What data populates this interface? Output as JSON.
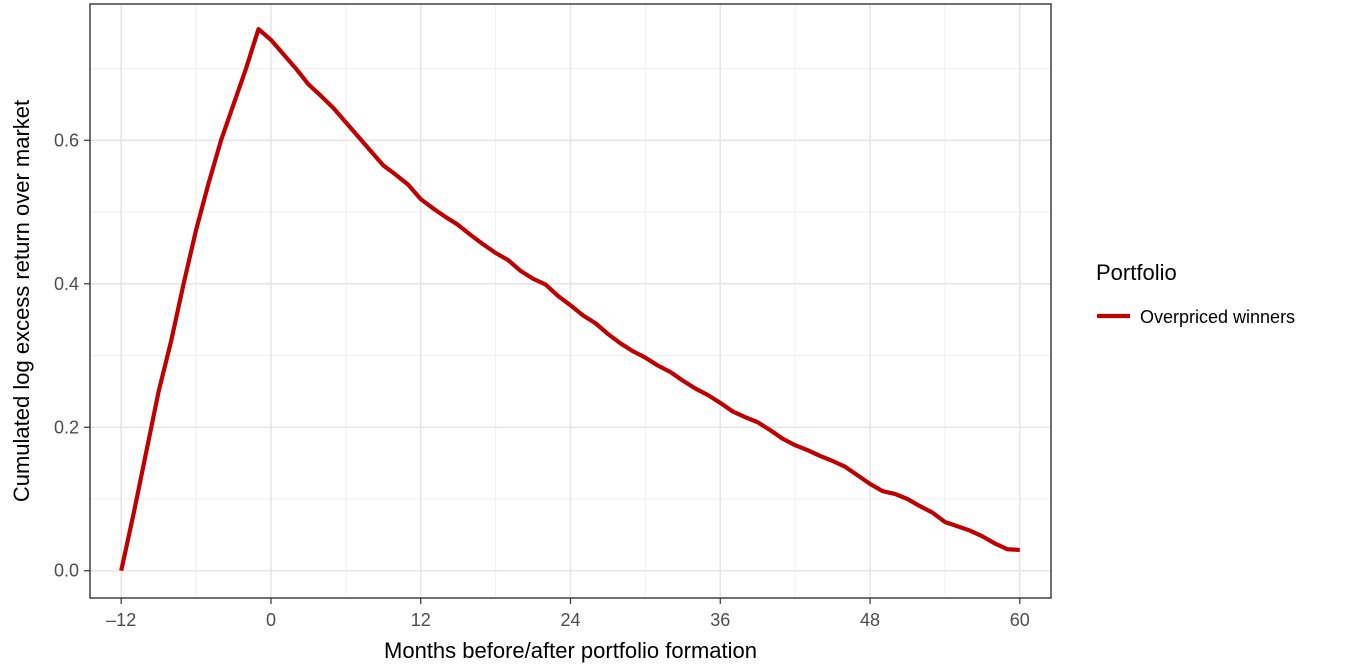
{
  "chart_data": {
    "type": "line",
    "xlabel": "Months before/after portfolio formation",
    "ylabel": "Cumulated log excess return over market",
    "xlim": [
      -14.5,
      62.5
    ],
    "ylim": [
      -0.038,
      0.79
    ],
    "x_ticks": [
      -12,
      0,
      12,
      24,
      36,
      48,
      60
    ],
    "x_tick_labels": [
      "–12",
      "0",
      "12",
      "24",
      "36",
      "48",
      "60"
    ],
    "y_ticks": [
      0.0,
      0.2,
      0.4,
      0.6
    ],
    "y_tick_labels": [
      "0.0",
      "0.2",
      "0.4",
      "0.6"
    ],
    "grid": true,
    "legend_position": "right",
    "legend_title": "Portfolio",
    "series": [
      {
        "name": "Overpriced winners",
        "color": "#C00000",
        "x": [
          -12,
          -11,
          -10,
          -9,
          -8,
          -7,
          -6,
          -5,
          -4,
          -3,
          -2,
          -1,
          0,
          1,
          2,
          3,
          4,
          5,
          6,
          7,
          8,
          9,
          10,
          11,
          12,
          13,
          14,
          15,
          16,
          17,
          18,
          19,
          20,
          21,
          22,
          23,
          24,
          25,
          26,
          27,
          28,
          29,
          30,
          31,
          32,
          33,
          34,
          35,
          36,
          37,
          38,
          39,
          40,
          41,
          42,
          43,
          44,
          45,
          46,
          47,
          48,
          49,
          50,
          51,
          52,
          53,
          54,
          55,
          56,
          57,
          58,
          59,
          60
        ],
        "y": [
          0.0,
          0.08,
          0.165,
          0.25,
          0.32,
          0.4,
          0.475,
          0.54,
          0.6,
          0.65,
          0.7,
          0.755,
          0.74,
          0.72,
          0.7,
          0.678,
          0.662,
          0.645,
          0.625,
          0.605,
          0.585,
          0.565,
          0.552,
          0.538,
          0.518,
          0.505,
          0.493,
          0.482,
          0.468,
          0.455,
          0.443,
          0.433,
          0.418,
          0.407,
          0.399,
          0.383,
          0.37,
          0.356,
          0.345,
          0.33,
          0.317,
          0.306,
          0.297,
          0.286,
          0.277,
          0.265,
          0.254,
          0.245,
          0.234,
          0.222,
          0.214,
          0.207,
          0.196,
          0.184,
          0.175,
          0.168,
          0.16,
          0.153,
          0.145,
          0.133,
          0.121,
          0.111,
          0.107,
          0.1,
          0.09,
          0.081,
          0.068,
          0.062,
          0.056,
          0.048,
          0.038,
          0.03,
          0.029
        ]
      }
    ]
  }
}
